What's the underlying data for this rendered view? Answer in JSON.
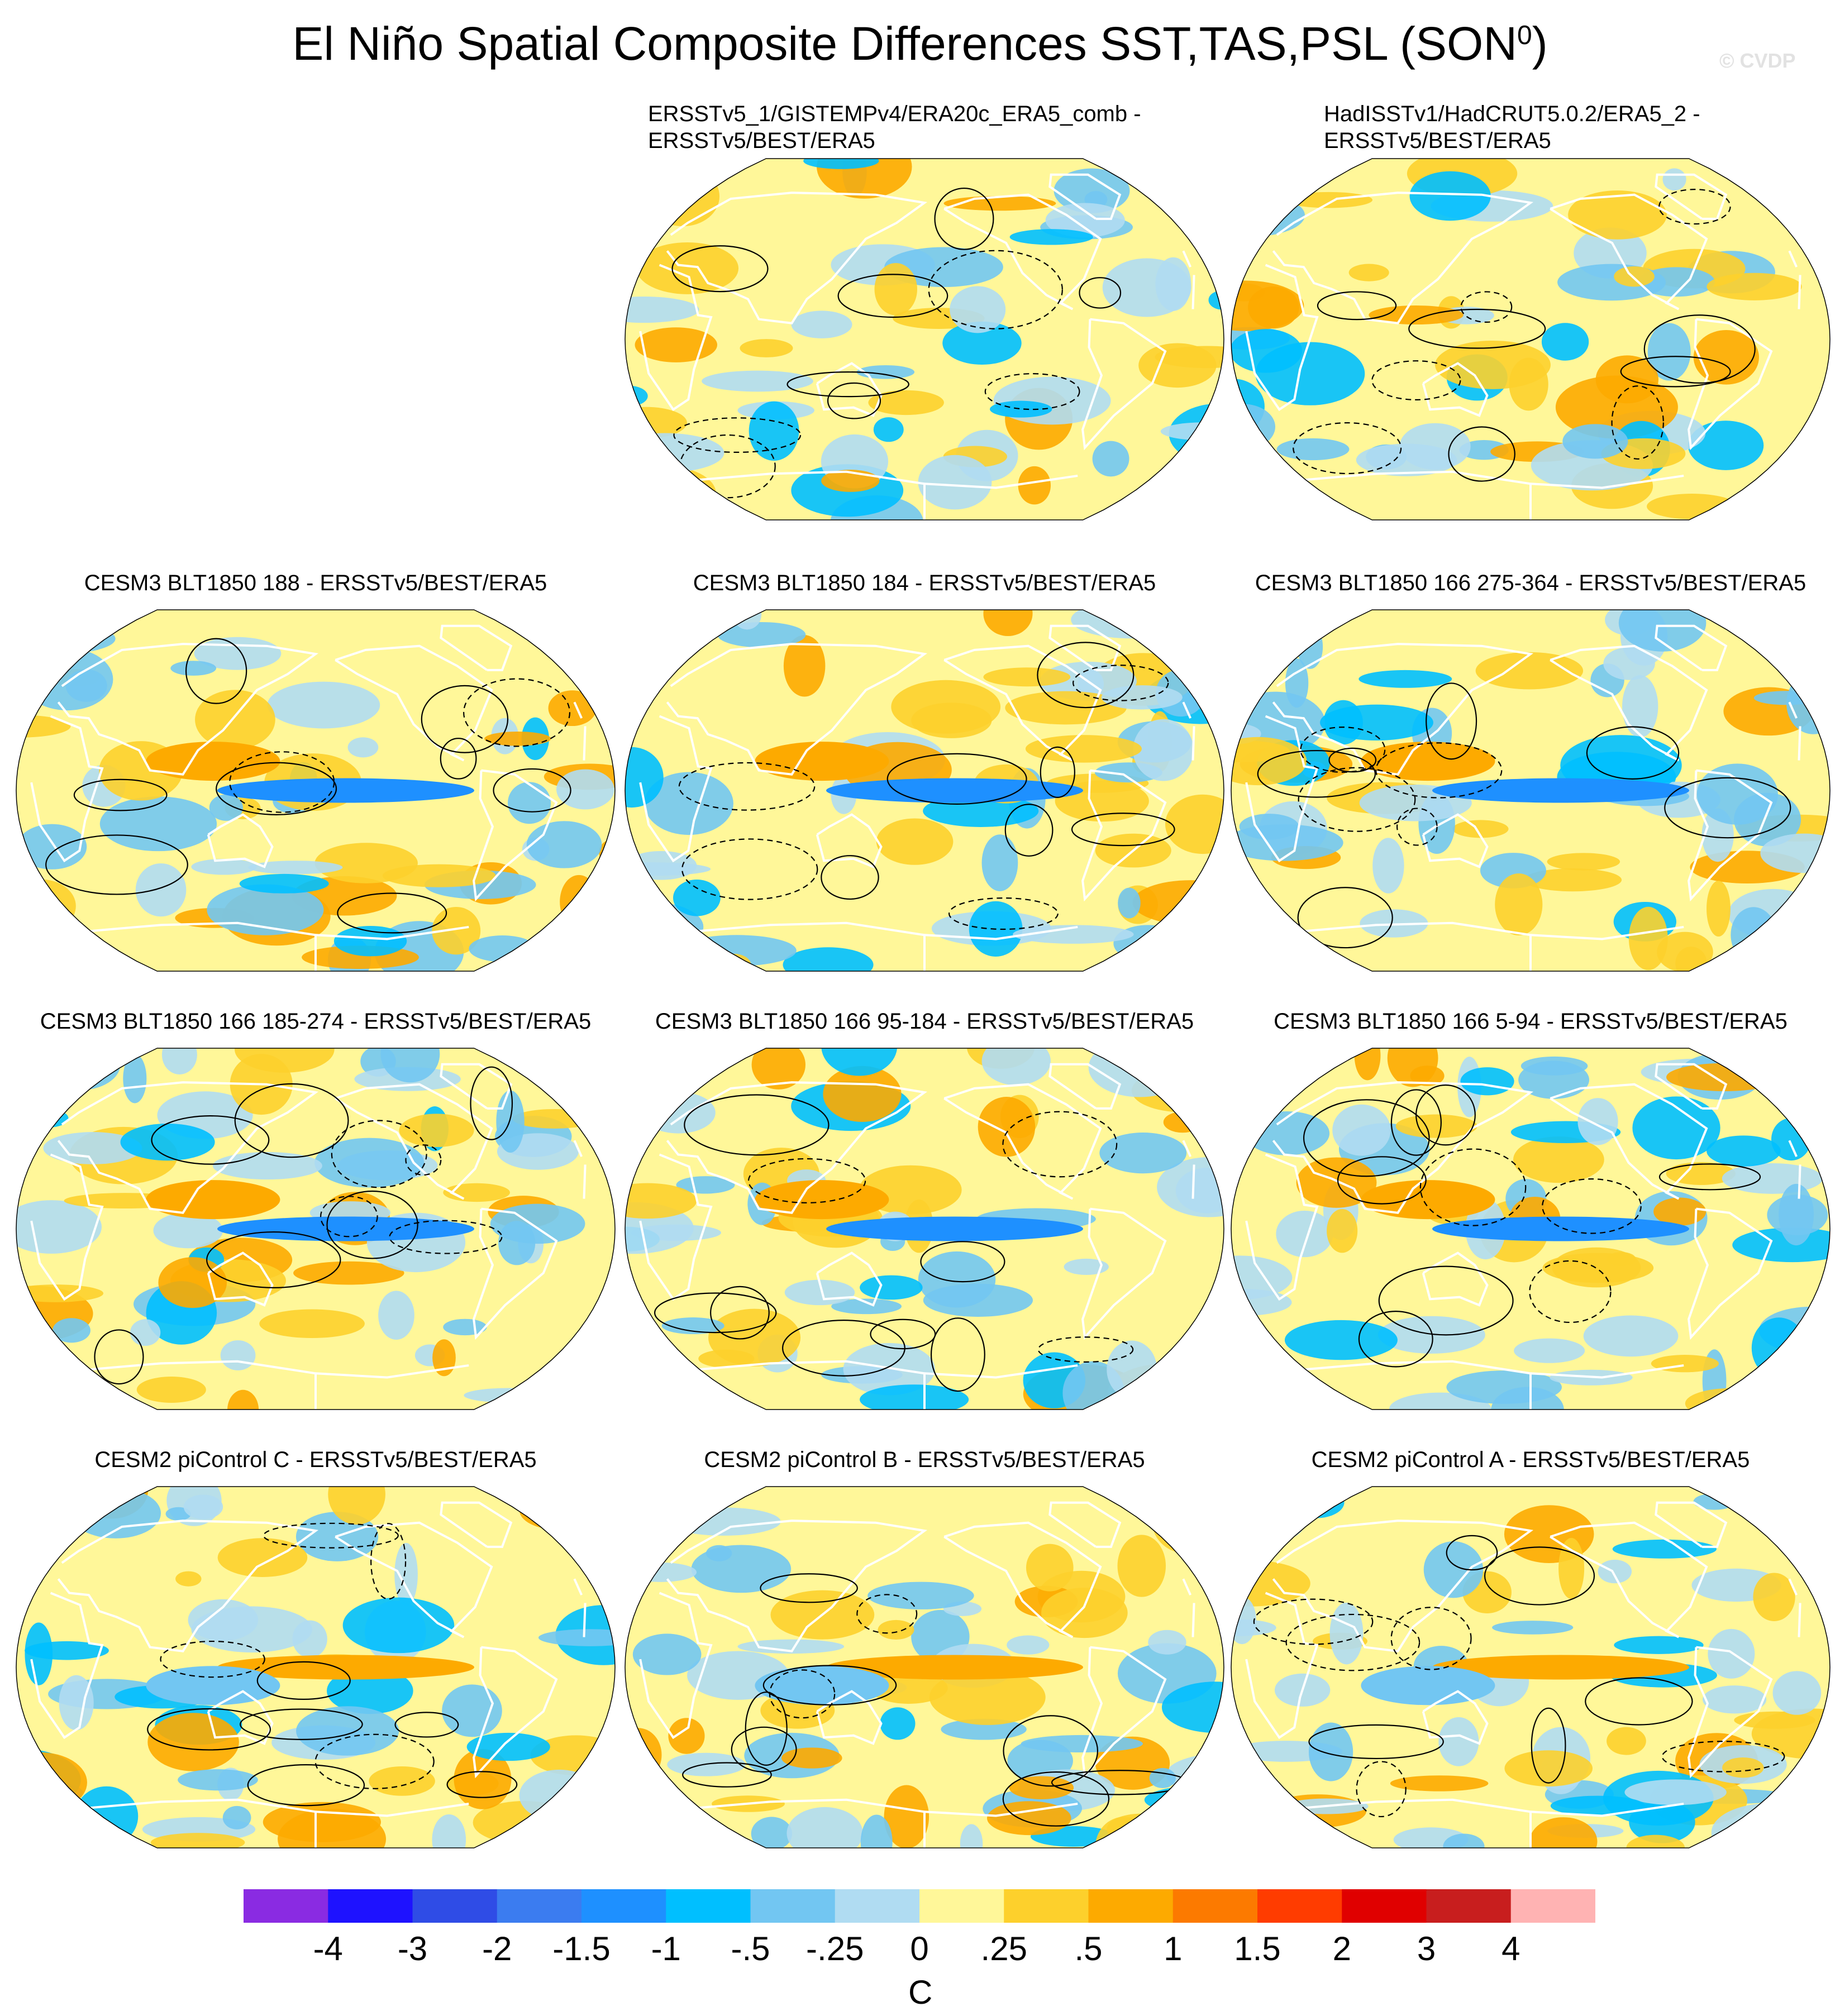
{
  "figure": {
    "title_main": "El Niño Spatial Composite Differences SST,TAS,PSL (SON",
    "title_sup": "0",
    "title_end": ")",
    "watermark": "© CVDP"
  },
  "panels": [
    {
      "id": "p1",
      "title_lines": [
        "ERSSTv5_1/GISTEMPv4/ERA20c_ERA5_comb -",
        "ERSSTv5/BEST/ERA5"
      ],
      "seed": 11
    },
    {
      "id": "p2",
      "title_lines": [
        "HadISSTv1/HadCRUT5.0.2/ERA5_2 -",
        "ERSSTv5/BEST/ERA5"
      ],
      "seed": 23
    },
    {
      "id": "p3",
      "title_lines": [
        "CESM3 BLT1850 188 - ERSSTv5/BEST/ERA5"
      ],
      "seed": 37
    },
    {
      "id": "p4",
      "title_lines": [
        "CESM3 BLT1850 184 - ERSSTv5/BEST/ERA5"
      ],
      "seed": 41
    },
    {
      "id": "p5",
      "title_lines": [
        "CESM3 BLT1850 166 275-364 - ERSSTv5/BEST/ERA5"
      ],
      "seed": 53
    },
    {
      "id": "p6",
      "title_lines": [
        "CESM3 BLT1850 166 185-274 - ERSSTv5/BEST/ERA5"
      ],
      "seed": 67
    },
    {
      "id": "p7",
      "title_lines": [
        "CESM3 BLT1850 166 95-184 - ERSSTv5/BEST/ERA5"
      ],
      "seed": 71
    },
    {
      "id": "p8",
      "title_lines": [
        "CESM3 BLT1850 166 5-94 - ERSSTv5/BEST/ERA5"
      ],
      "seed": 83
    },
    {
      "id": "p9",
      "title_lines": [
        "CESM2 piControl C - ERSSTv5/BEST/ERA5"
      ],
      "seed": 97
    },
    {
      "id": "p10",
      "title_lines": [
        "CESM2 piControl B - ERSSTv5/BEST/ERA5"
      ],
      "seed": 101
    },
    {
      "id": "p11",
      "title_lines": [
        "CESM2 piControl A - ERSSTv5/BEST/ERA5"
      ],
      "seed": 113
    }
  ],
  "colorbar": {
    "colors": [
      "#8a2be2",
      "#1e12ff",
      "#2f4ce6",
      "#3b7cf0",
      "#1e90ff",
      "#00bfff",
      "#72c6f2",
      "#b0dcf2",
      "#fff799",
      "#fdd02c",
      "#fdaa00",
      "#fc7a00",
      "#ff3c00",
      "#e00000",
      "#c81e1e",
      "#ffb3b3"
    ],
    "labels": [
      "-4",
      "-3",
      "-2",
      "-1.5",
      "-1",
      "-.5",
      "-.25",
      "0",
      ".25",
      ".5",
      "1",
      "1.5",
      "2",
      "3",
      "4"
    ],
    "unit": "C"
  },
  "colors": {
    "land_outline": "#ffffff",
    "contour": "#000000",
    "background": "#ffffff"
  }
}
